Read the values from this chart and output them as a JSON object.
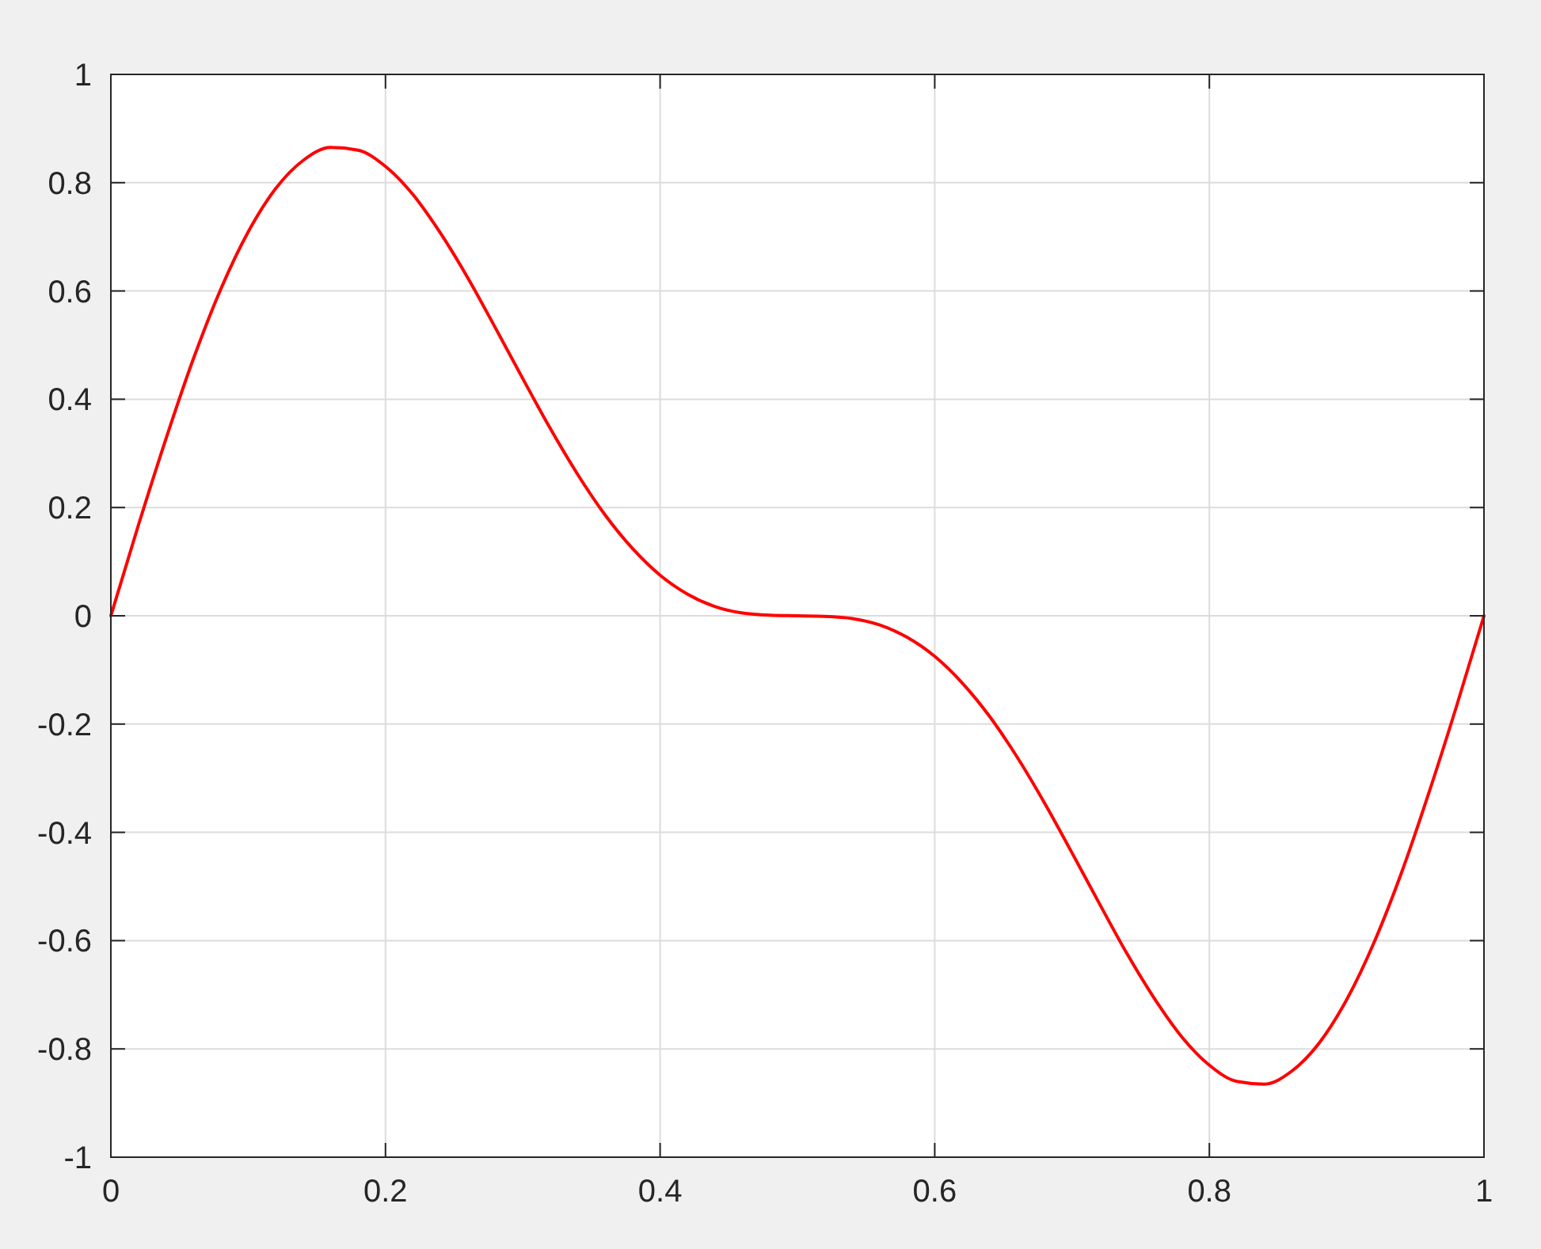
{
  "chart_data": {
    "type": "line",
    "x": [
      0,
      0.02,
      0.04,
      0.06,
      0.08,
      0.1,
      0.12,
      0.14,
      0.16,
      0.18,
      0.2,
      0.22,
      0.24,
      0.26,
      0.28,
      0.3,
      0.32,
      0.34,
      0.36,
      0.38,
      0.4,
      0.42,
      0.44,
      0.46,
      0.48,
      0.5,
      0.52,
      0.54,
      0.56,
      0.58,
      0.6,
      0.62,
      0.64,
      0.66,
      0.68,
      0.7,
      0.72,
      0.74,
      0.76,
      0.78,
      0.8,
      0.82,
      0.84,
      0.86,
      0.88,
      0.9,
      0.92,
      0.94,
      0.96,
      0.98,
      1
    ],
    "series": [
      {
        "color": "#ff0000",
        "values": [
          0,
          0.167,
          0.326,
          0.474,
          0.603,
          0.709,
          0.789,
          0.841,
          0.865,
          0.86,
          0.83,
          0.778,
          0.707,
          0.624,
          0.532,
          0.438,
          0.346,
          0.261,
          0.186,
          0.124,
          0.075,
          0.04,
          0.017,
          0.005,
          0.001,
          0,
          -0.001,
          -0.005,
          -0.017,
          -0.04,
          -0.075,
          -0.124,
          -0.186,
          -0.261,
          -0.346,
          -0.438,
          -0.532,
          -0.624,
          -0.707,
          -0.778,
          -0.83,
          -0.86,
          -0.865,
          -0.841,
          -0.789,
          -0.709,
          -0.603,
          -0.474,
          -0.326,
          -0.167,
          0
        ]
      }
    ],
    "xlim": [
      0,
      1
    ],
    "xticks": [
      0,
      0.2,
      0.4,
      0.6,
      0.8,
      1
    ],
    "ylim": [
      -1,
      1
    ],
    "yticks": [
      -1,
      -0.8,
      -0.6,
      -0.4,
      -0.2,
      0,
      0.2,
      0.4,
      0.6,
      0.8,
      1
    ],
    "grid": true,
    "marker": "none",
    "line_style": "solid"
  }
}
